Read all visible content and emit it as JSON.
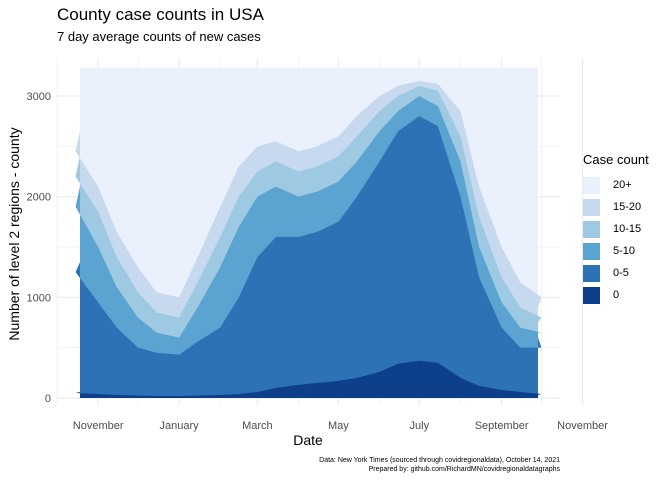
{
  "chart_data": {
    "type": "area",
    "title": "County case counts in USA",
    "subtitle": "7 day average counts of new cases",
    "xlabel": "Date",
    "ylabel": "Number of level 2 regions - county",
    "x_range": [
      "2020-10-01",
      "2021-10-15"
    ],
    "ylim": [
      0,
      3300
    ],
    "y_ticks": [
      0,
      1000,
      2000,
      3000
    ],
    "x_tick_labels": [
      "November",
      "January",
      "March",
      "May",
      "July",
      "September",
      "November"
    ],
    "grid": true,
    "legend_title": "Case count",
    "legend_position": "right",
    "stack_order": [
      "0",
      "0-5",
      "5-10",
      "10-15",
      "15-20",
      "20+"
    ],
    "legend_order": [
      "20+",
      "15-20",
      "10-15",
      "5-10",
      "0-5",
      "0"
    ],
    "colors": {
      "20+": "#eaf1fd",
      "15-20": "#c6d9ef",
      "10-15": "#9ec9e2",
      "5-10": "#5ba3d1",
      "0-5": "#2e72b6",
      "0": "#0d3f8b"
    },
    "total": 3280,
    "series_cumulative": {
      "x": [
        "2020-10-01",
        "2020-10-15",
        "2020-11-01",
        "2020-11-15",
        "2020-12-01",
        "2020-12-15",
        "2021-01-01",
        "2021-01-15",
        "2021-02-01",
        "2021-02-15",
        "2021-03-01",
        "2021-03-15",
        "2021-04-01",
        "2021-04-15",
        "2021-05-01",
        "2021-05-15",
        "2021-06-01",
        "2021-06-15",
        "2021-07-01",
        "2021-07-15",
        "2021-08-01",
        "2021-08-15",
        "2021-09-01",
        "2021-09-15",
        "2021-10-01",
        "2021-10-08"
      ],
      "0": [
        60,
        50,
        40,
        30,
        25,
        20,
        20,
        25,
        30,
        40,
        60,
        100,
        130,
        150,
        170,
        200,
        260,
        340,
        370,
        350,
        200,
        120,
        80,
        60,
        40,
        30
      ],
      "0-5": [
        1350,
        1250,
        950,
        700,
        500,
        450,
        430,
        560,
        700,
        1000,
        1400,
        1600,
        1600,
        1650,
        1750,
        2000,
        2350,
        2650,
        2800,
        2700,
        2000,
        1200,
        700,
        500,
        500,
        600
      ],
      "5-10": [
        2100,
        1900,
        1500,
        1100,
        800,
        650,
        600,
        900,
        1300,
        1700,
        2000,
        2100,
        2000,
        2050,
        2150,
        2350,
        2650,
        2850,
        3000,
        2900,
        2350,
        1500,
        950,
        700,
        650,
        650
      ],
      "10-15": [
        2400,
        2200,
        1850,
        1400,
        1050,
        850,
        800,
        1150,
        1600,
        2000,
        2250,
        2350,
        2250,
        2300,
        2400,
        2600,
        2850,
        3000,
        3100,
        3050,
        2600,
        1800,
        1200,
        900,
        800,
        750
      ],
      "15-20": [
        2650,
        2450,
        2100,
        1650,
        1300,
        1050,
        1000,
        1400,
        1900,
        2300,
        2500,
        2550,
        2450,
        2500,
        2600,
        2800,
        3000,
        3100,
        3150,
        3120,
        2850,
        2100,
        1500,
        1150,
        1000,
        900
      ]
    }
  },
  "caption": {
    "line1": "Data: New York Times (sourced through covidregionaldata), October 14, 2021",
    "line2": "Prepared by: github.com/RichardMN/covidregionaldatagraphs"
  }
}
